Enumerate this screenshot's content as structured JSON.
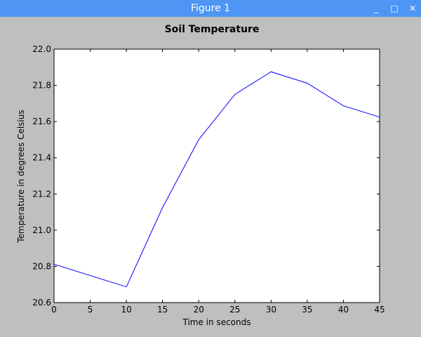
{
  "window": {
    "title": "Figure 1",
    "controls": {
      "minimize": "_",
      "maximize": "□",
      "close": "✕"
    }
  },
  "colors": {
    "titlebar": "#4e95f4",
    "figure_bg": "#bfbfbf",
    "axes_bg": "#ffffff",
    "line": "#0000ff"
  },
  "chart_data": {
    "type": "line",
    "title": "Soil Temperature",
    "xlabel": "Time in seconds",
    "ylabel": "Temperature in degrees Celsius",
    "xlim": [
      0,
      45
    ],
    "ylim": [
      20.6,
      22.0
    ],
    "xticks": [
      0,
      5,
      10,
      15,
      20,
      25,
      30,
      35,
      40,
      45
    ],
    "xtick_labels": [
      "0",
      "5",
      "10",
      "15",
      "20",
      "25",
      "30",
      "35",
      "40",
      "45"
    ],
    "yticks": [
      20.6,
      20.8,
      21.0,
      21.2,
      21.4,
      21.6,
      21.8,
      22.0
    ],
    "ytick_labels": [
      "20.6",
      "20.8",
      "21.0",
      "21.2",
      "21.4",
      "21.6",
      "21.8",
      "22.0"
    ],
    "grid": false,
    "series": [
      {
        "x": [
          0,
          10,
          15,
          20,
          25,
          30,
          35,
          40,
          45
        ],
        "y": [
          20.812,
          20.687,
          21.125,
          21.5,
          21.75,
          21.875,
          21.812,
          21.687,
          21.625
        ]
      }
    ]
  }
}
